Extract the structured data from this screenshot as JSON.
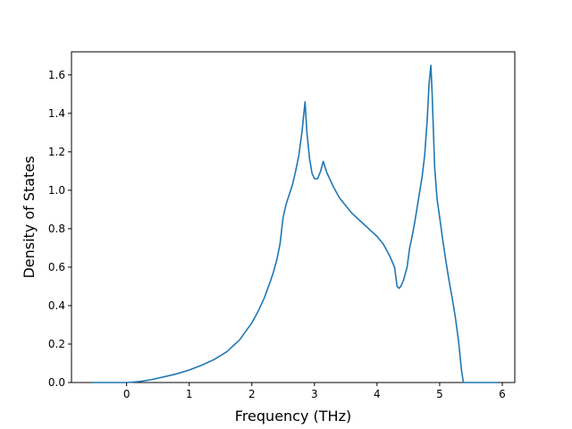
{
  "chart_data": {
    "type": "line",
    "title": "",
    "xlabel": "Frequency (THz)",
    "ylabel": "Density of States",
    "xlim": [
      -0.88,
      6.2
    ],
    "ylim": [
      0.0,
      1.72
    ],
    "xticks": [
      0,
      1,
      2,
      3,
      4,
      5,
      6
    ],
    "yticks": [
      0.0,
      0.2,
      0.4,
      0.6,
      0.8,
      1.0,
      1.2,
      1.4,
      1.6
    ],
    "grid": false,
    "legend": "none",
    "line_color": "#1f77b4",
    "series": [
      {
        "x": [
          -0.55,
          -0.3,
          0.0,
          0.2,
          0.4,
          0.6,
          0.8,
          1.0,
          1.2,
          1.4,
          1.6,
          1.8,
          2.0,
          2.1,
          2.2,
          2.3,
          2.35,
          2.4,
          2.45,
          2.5,
          2.55,
          2.6,
          2.65,
          2.7,
          2.75,
          2.8,
          2.85,
          2.88,
          2.92,
          2.96,
          3.0,
          3.05,
          3.1,
          3.14,
          3.2,
          3.3,
          3.4,
          3.5,
          3.6,
          3.7,
          3.8,
          3.9,
          4.0,
          4.1,
          4.2,
          4.28,
          4.32,
          4.35,
          4.38,
          4.42,
          4.48,
          4.52,
          4.56,
          4.6,
          4.64,
          4.68,
          4.72,
          4.76,
          4.8,
          4.83,
          4.86,
          4.88,
          4.92,
          4.96,
          5.0,
          5.05,
          5.1,
          5.15,
          5.2,
          5.25,
          5.3,
          5.35,
          5.38,
          5.42,
          5.5,
          5.6,
          5.7,
          5.8,
          5.92
        ],
        "y": [
          0.0,
          0.0,
          0.0,
          0.005,
          0.015,
          0.03,
          0.045,
          0.065,
          0.09,
          0.12,
          0.16,
          0.22,
          0.31,
          0.37,
          0.44,
          0.53,
          0.58,
          0.64,
          0.72,
          0.86,
          0.93,
          0.98,
          1.03,
          1.1,
          1.18,
          1.3,
          1.46,
          1.3,
          1.17,
          1.09,
          1.06,
          1.06,
          1.1,
          1.15,
          1.09,
          1.02,
          0.96,
          0.92,
          0.88,
          0.85,
          0.82,
          0.79,
          0.76,
          0.72,
          0.66,
          0.6,
          0.5,
          0.49,
          0.5,
          0.53,
          0.6,
          0.7,
          0.76,
          0.83,
          0.91,
          0.99,
          1.07,
          1.18,
          1.36,
          1.55,
          1.65,
          1.5,
          1.12,
          0.95,
          0.86,
          0.74,
          0.63,
          0.53,
          0.44,
          0.34,
          0.22,
          0.06,
          0.0,
          0.0,
          0.0,
          0.0,
          0.0,
          0.0,
          0.0
        ]
      }
    ]
  }
}
